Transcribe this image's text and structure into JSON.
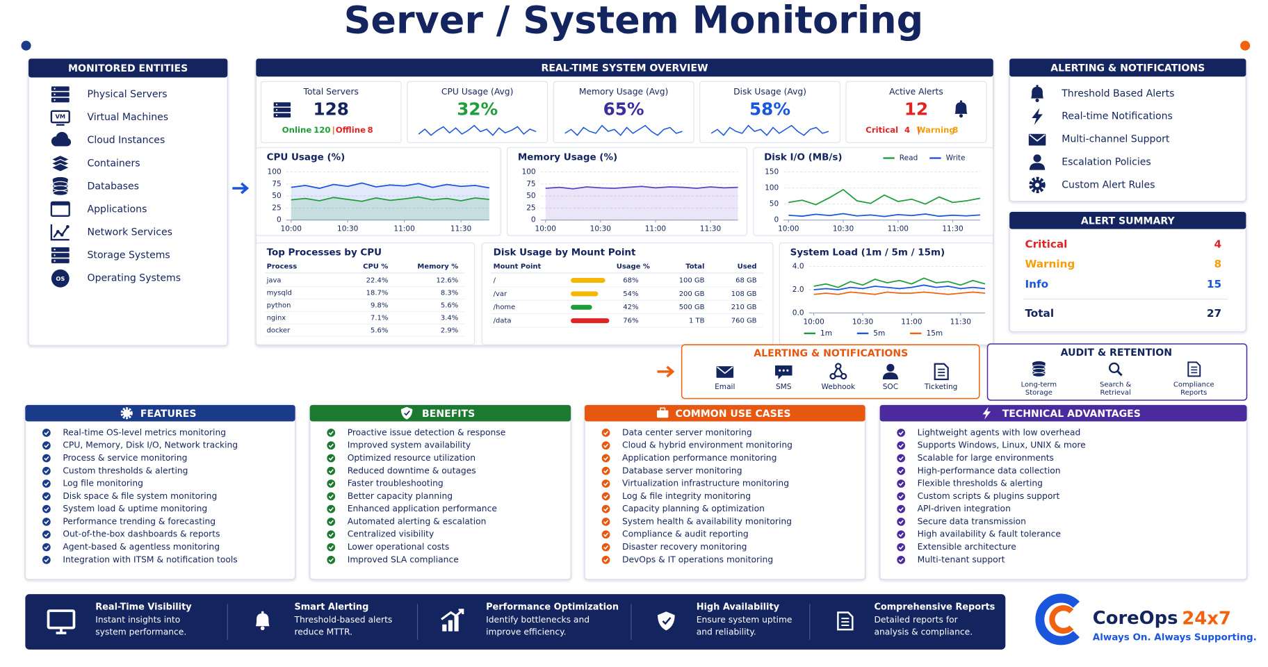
{
  "title": "Server / System Monitoring",
  "entities": {
    "heading": "MONITORED ENTITIES",
    "items": [
      {
        "label": "Physical Servers",
        "icon": "server"
      },
      {
        "label": "Virtual Machines",
        "icon": "vm",
        "badge": "VM"
      },
      {
        "label": "Cloud Instances",
        "icon": "cloud"
      },
      {
        "label": "Containers",
        "icon": "layers"
      },
      {
        "label": "Databases",
        "icon": "db"
      },
      {
        "label": "Applications",
        "icon": "app"
      },
      {
        "label": "Network Services",
        "icon": "net"
      },
      {
        "label": "Storage Systems",
        "icon": "server"
      },
      {
        "label": "Operating Systems",
        "icon": "os",
        "badge": "OS"
      }
    ]
  },
  "overview": {
    "heading": "REAL-TIME SYSTEM OVERVIEW",
    "separator": "|",
    "kpis": [
      {
        "label": "Total Servers",
        "value": "128",
        "color": "#13245e",
        "icon": "server",
        "sub": [
          {
            "label": "Online",
            "value": "120",
            "color": "#1f9d3a"
          },
          {
            "label": "Offline",
            "value": "8",
            "color": "#e02424"
          }
        ]
      },
      {
        "label": "CPU Usage (Avg)",
        "value": "32%",
        "color": "#1f9d3a",
        "spark": [
          30,
          34,
          29,
          33,
          36,
          31,
          35,
          30,
          33,
          37,
          32,
          34,
          29,
          35,
          31,
          33,
          36,
          30,
          34,
          32
        ]
      },
      {
        "label": "Memory Usage (Avg)",
        "value": "65%",
        "color": "#3b2f9e",
        "spark": [
          64,
          66,
          63,
          67,
          65,
          64,
          68,
          65,
          66,
          63,
          67,
          64,
          66,
          68,
          65,
          63,
          66,
          67,
          64,
          65
        ]
      },
      {
        "label": "Disk Usage (Avg)",
        "value": "58%",
        "color": "#1a56db",
        "spark": [
          57,
          59,
          56,
          60,
          58,
          57,
          61,
          58,
          59,
          56,
          60,
          57,
          59,
          61,
          58,
          56,
          59,
          60,
          57,
          58
        ]
      },
      {
        "label": "Active Alerts",
        "value": "12",
        "color": "#e02424",
        "icon": "bell",
        "sub": [
          {
            "label": "Critical",
            "value": "4",
            "color": "#e02424"
          },
          {
            "label": "Warning",
            "value": "8",
            "color": "#f59e0b"
          }
        ]
      }
    ],
    "cpu_chart": {
      "type": "line",
      "title": "CPU Usage (%)",
      "area": true,
      "grid": true,
      "xlim": [
        0,
        105
      ],
      "xticks": [
        {
          "value": 0,
          "label": "10:00"
        },
        {
          "value": 30,
          "label": "10:30"
        },
        {
          "value": 60,
          "label": "11:00"
        },
        {
          "value": 90,
          "label": "11:30"
        }
      ],
      "ylim": [
        0,
        100
      ],
      "yticks": [
        0,
        25,
        50,
        75,
        100
      ],
      "x": [
        0,
        7.5,
        15,
        22.5,
        30,
        37.5,
        45,
        52.5,
        60,
        67.5,
        75,
        82.5,
        90,
        97.5,
        105
      ],
      "series": [
        {
          "color": "#1a56db",
          "values": [
            68,
            72,
            66,
            74,
            70,
            77,
            69,
            73,
            71,
            76,
            68,
            74,
            70,
            72,
            67
          ]
        },
        {
          "color": "#1f9d3a",
          "values": [
            42,
            45,
            40,
            47,
            43,
            39,
            46,
            41,
            44,
            48,
            42,
            45,
            40,
            46,
            43
          ]
        }
      ]
    },
    "memory_chart": {
      "type": "line",
      "title": "Memory Usage (%)",
      "area": true,
      "grid": true,
      "xlim": [
        0,
        105
      ],
      "xticks": [
        {
          "value": 0,
          "label": "10:00"
        },
        {
          "value": 30,
          "label": "10:30"
        },
        {
          "value": 60,
          "label": "11:00"
        },
        {
          "value": 90,
          "label": "11:30"
        }
      ],
      "ylim": [
        0,
        100
      ],
      "yticks": [
        0,
        25,
        50,
        75,
        100
      ],
      "x": [
        0,
        7.5,
        15,
        22.5,
        30,
        37.5,
        45,
        52.5,
        60,
        67.5,
        75,
        82.5,
        90,
        97.5,
        105
      ],
      "series": [
        {
          "color": "#5b3fc4",
          "values": [
            66,
            68,
            65,
            69,
            67,
            66,
            68,
            70,
            67,
            69,
            68,
            66,
            69,
            67,
            68
          ]
        }
      ]
    },
    "disk_io_chart": {
      "type": "line",
      "title": "Disk I/O (MB/s)",
      "area": false,
      "grid": true,
      "legend": "top-right",
      "xlim": [
        0,
        105
      ],
      "xticks": [
        {
          "value": 0,
          "label": "10:00"
        },
        {
          "value": 30,
          "label": "10:30"
        },
        {
          "value": 60,
          "label": "11:00"
        },
        {
          "value": 90,
          "label": "11:30"
        }
      ],
      "ylim": [
        0,
        150
      ],
      "yticks": [
        0,
        50,
        100,
        150
      ],
      "x": [
        0,
        7.5,
        15,
        22.5,
        30,
        37.5,
        45,
        52.5,
        60,
        67.5,
        75,
        82.5,
        90,
        97.5,
        105
      ],
      "series": [
        {
          "name": "Read",
          "color": "#1f9d3a",
          "values": [
            55,
            62,
            48,
            70,
            95,
            60,
            52,
            78,
            58,
            65,
            50,
            72,
            55,
            60,
            68
          ]
        },
        {
          "name": "Write",
          "color": "#1a56db",
          "values": [
            15,
            12,
            18,
            14,
            20,
            13,
            16,
            11,
            17,
            14,
            19,
            12,
            15,
            13,
            16
          ]
        }
      ]
    },
    "processes": {
      "title": "Top Processes by CPU",
      "headers": [
        "Process",
        "CPU %",
        "Memory %"
      ],
      "rows": [
        [
          "java",
          "22.4%",
          "12.6%"
        ],
        [
          "mysqld",
          "18.7%",
          "8.3%"
        ],
        [
          "python",
          "9.8%",
          "5.6%"
        ],
        [
          "nginx",
          "7.1%",
          "3.4%"
        ],
        [
          "docker",
          "5.6%",
          "2.9%"
        ]
      ]
    },
    "disk_usage": {
      "title": "Disk Usage by Mount Point",
      "headers": [
        "Mount Point",
        "Usage %",
        "Total",
        "Used"
      ],
      "rows": [
        {
          "mount": "/",
          "usage": 68,
          "usage_label": "68%",
          "total": "100 GB",
          "used": "68 GB",
          "color": "#f5b700"
        },
        {
          "mount": "/var",
          "usage": 54,
          "usage_label": "54%",
          "total": "200 GB",
          "used": "108 GB",
          "color": "#f5b700"
        },
        {
          "mount": "/home",
          "usage": 42,
          "usage_label": "42%",
          "total": "500 GB",
          "used": "210 GB",
          "color": "#1f9d3a"
        },
        {
          "mount": "/data",
          "usage": 76,
          "usage_label": "76%",
          "total": "1 TB",
          "used": "760 GB",
          "color": "#e02424"
        }
      ]
    },
    "load_chart": {
      "type": "line",
      "title": "System Load (1m / 5m / 15m)",
      "area": false,
      "grid": true,
      "legend": "bottom",
      "xlim": [
        0,
        105
      ],
      "xticks": [
        {
          "value": 0,
          "label": "10:00"
        },
        {
          "value": 30,
          "label": "10:30"
        },
        {
          "value": 60,
          "label": "11:00"
        },
        {
          "value": 90,
          "label": "11:30"
        }
      ],
      "ylim": [
        0,
        4
      ],
      "yticks": [
        {
          "value": 0,
          "label": "0.0"
        },
        {
          "value": 2,
          "label": "2.0"
        },
        {
          "value": 4,
          "label": "4.0"
        }
      ],
      "x": [
        0,
        7.5,
        15,
        22.5,
        30,
        37.5,
        45,
        52.5,
        60,
        67.5,
        75,
        82.5,
        90,
        97.5,
        105
      ],
      "series": [
        {
          "name": "1m",
          "color": "#1f9d3a",
          "values": [
            2.3,
            2.5,
            2.2,
            2.7,
            2.4,
            2.9,
            2.6,
            2.8,
            2.5,
            3.0,
            2.6,
            2.7,
            2.4,
            2.8,
            2.5
          ]
        },
        {
          "name": "5m",
          "color": "#1a56db",
          "values": [
            2.0,
            2.1,
            2.0,
            2.2,
            2.1,
            2.3,
            2.2,
            2.1,
            2.2,
            2.4,
            2.2,
            2.3,
            2.1,
            2.2,
            2.1
          ]
        },
        {
          "name": "15m",
          "color": "#f0620f",
          "values": [
            1.6,
            1.7,
            1.6,
            1.8,
            1.7,
            1.6,
            1.8,
            1.7,
            1.7,
            1.8,
            1.7,
            1.6,
            1.7,
            1.8,
            1.7
          ]
        }
      ]
    }
  },
  "alerting": {
    "heading": "ALERTING & NOTIFICATIONS",
    "items": [
      {
        "label": "Threshold Based Alerts",
        "icon": "bell"
      },
      {
        "label": "Real-time Notifications",
        "icon": "bolt"
      },
      {
        "label": "Multi-channel Support",
        "icon": "mail"
      },
      {
        "label": "Escalation Policies",
        "icon": "user"
      },
      {
        "label": "Custom Alert Rules",
        "icon": "gear"
      }
    ]
  },
  "alert_summary": {
    "heading": "ALERT SUMMARY",
    "rows": [
      {
        "label": "Critical",
        "value": "4",
        "color": "#e02424"
      },
      {
        "label": "Warning",
        "value": "8",
        "color": "#f59e0b"
      },
      {
        "label": "Info",
        "value": "15",
        "color": "#1a56db"
      }
    ],
    "total": {
      "label": "Total",
      "value": "27"
    }
  },
  "channels": {
    "heading": "ALERTING & NOTIFICATIONS",
    "items": [
      {
        "label": "Email",
        "icon": "mail"
      },
      {
        "label": "SMS",
        "icon": "chat"
      },
      {
        "label": "Webhook",
        "icon": "hook"
      },
      {
        "label": "SOC",
        "icon": "user"
      },
      {
        "label": "Ticketing",
        "icon": "doc"
      }
    ]
  },
  "audit": {
    "heading": "AUDIT & RETENTION",
    "items": [
      {
        "lines": [
          "Long-term",
          "Storage"
        ],
        "icon": "db"
      },
      {
        "lines": [
          "Search &",
          "Retrieval"
        ],
        "icon": "search"
      },
      {
        "lines": [
          "Compliance",
          "Reports"
        ],
        "icon": "doc"
      }
    ]
  },
  "panels": [
    {
      "heading": "FEATURES",
      "color": "#1a3a8a",
      "icon": "gear",
      "items": [
        "Real-time OS-level metrics monitoring",
        "CPU, Memory, Disk I/O, Network tracking",
        "Process & service monitoring",
        "Custom thresholds & alerting",
        "Log file monitoring",
        "Disk space & file system monitoring",
        "System load & uptime monitoring",
        "Performance trending & forecasting",
        "Out-of-the-box dashboards & reports",
        "Agent-based & agentless monitoring",
        "Integration with ITSM & notification tools"
      ]
    },
    {
      "heading": "BENEFITS",
      "color": "#1b7a2f",
      "icon": "shield",
      "items": [
        "Proactive issue detection & response",
        "Improved system availability",
        "Optimized resource utilization",
        "Reduced downtime & outages",
        "Faster troubleshooting",
        "Better capacity planning",
        "Enhanced application performance",
        "Automated alerting & escalation",
        "Centralized visibility",
        "Lower operational costs",
        "Improved SLA compliance"
      ]
    },
    {
      "heading": "COMMON USE CASES",
      "color": "#e8570f",
      "icon": "case",
      "items": [
        "Data center server monitoring",
        "Cloud & hybrid environment monitoring",
        "Application performance monitoring",
        "Database server monitoring",
        "Virtualization infrastructure monitoring",
        "Log & file integrity monitoring",
        "Capacity planning & optimization",
        "System health & availability monitoring",
        "Compliance & audit reporting",
        "Disaster recovery monitoring",
        "DevOps & IT operations monitoring"
      ]
    },
    {
      "heading": "TECHNICAL ADVANTAGES",
      "color": "#4b2a9e",
      "icon": "bolt",
      "items": [
        "Lightweight agents with low overhead",
        "Supports Windows, Linux, UNIX & more",
        "Scalable for large environments",
        "High-performance data collection",
        "Flexible thresholds & alerting",
        "Custom scripts & plugins support",
        "API-driven integration",
        "Secure data transmission",
        "High availability & fault tolerance",
        "Extensible architecture",
        "Multi-tenant support"
      ]
    }
  ],
  "highlights": [
    {
      "title": "Real-Time Visibility",
      "lines": [
        "Instant insights into",
        "system performance."
      ],
      "icon": "monitor"
    },
    {
      "title": "Smart Alerting",
      "lines": [
        "Threshold-based alerts",
        "reduce MTTR."
      ],
      "icon": "bell"
    },
    {
      "title": "Performance Optimization",
      "lines": [
        "Identify bottlenecks and",
        "improve efficiency."
      ],
      "icon": "chart"
    },
    {
      "title": "High Availability",
      "lines": [
        "Ensure system uptime",
        "and reliability."
      ],
      "icon": "shield"
    },
    {
      "title": "Comprehensive Reports",
      "lines": [
        "Detailed reports for",
        "analysis & compliance."
      ],
      "icon": "doc"
    }
  ],
  "brand": {
    "name": "CoreOps",
    "suffix": "24x7",
    "tagline": "Always On. Always Supporting."
  }
}
